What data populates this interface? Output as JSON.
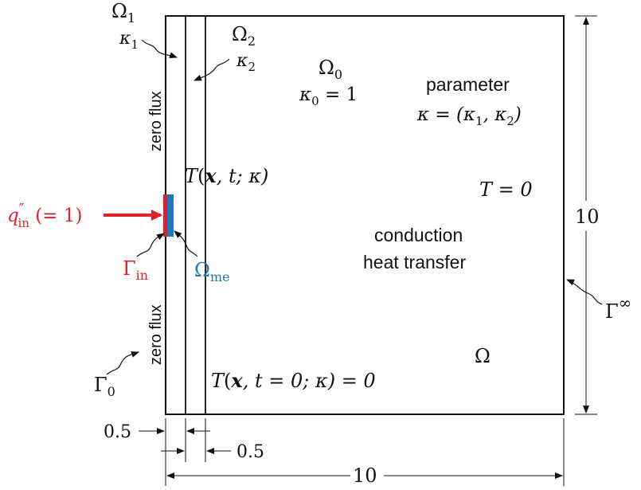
{
  "colors": {
    "ink": "#111111",
    "flux": "#e0202a",
    "measure": "#1f77b4"
  },
  "regions": {
    "omega1": {
      "sym": "Ω",
      "sub": "1",
      "kappa": "κ",
      "kappa_sub": "1"
    },
    "omega2": {
      "sym": "Ω",
      "sub": "2",
      "kappa": "κ",
      "kappa_sub": "2"
    },
    "omega0": {
      "sym": "Ω",
      "sub": "0",
      "kappa": "κ",
      "kappa_sub": "0",
      "eq": " = 1"
    },
    "omega": {
      "sym": "Ω"
    },
    "omega_me": {
      "sym": "Ω",
      "sub": "me"
    }
  },
  "parameter": {
    "title": "parameter",
    "expr_pre": "κ = (κ",
    "s1": "1",
    "mid": ", κ",
    "s2": "2",
    "post": ")"
  },
  "field": {
    "T": "T",
    "args_pre": "(",
    "x": "x",
    "args_post": ", t; κ)"
  },
  "initial": {
    "T": "T",
    "args_pre": "(",
    "x": "x",
    "args_post": ", t = 0; κ) = 0"
  },
  "far_field": {
    "text": "T = 0"
  },
  "physics": {
    "line1": "conduction",
    "line2": "heat transfer"
  },
  "flux": {
    "q": "q",
    "sup": "″",
    "sub": "in",
    "val": " (= 1)"
  },
  "boundaries": {
    "gamma_in": {
      "sym": "Γ",
      "sub": "in"
    },
    "gamma_0": {
      "sym": "Γ",
      "sub": "0"
    },
    "gamma_inf": {
      "sym": "Γ",
      "sup": "∞"
    },
    "zero_flux_top": "zero flux",
    "zero_flux_bottom": "zero flux"
  },
  "dimensions": {
    "height": "10",
    "width": "10",
    "layer1": "0.5",
    "layer2": "0.5"
  }
}
